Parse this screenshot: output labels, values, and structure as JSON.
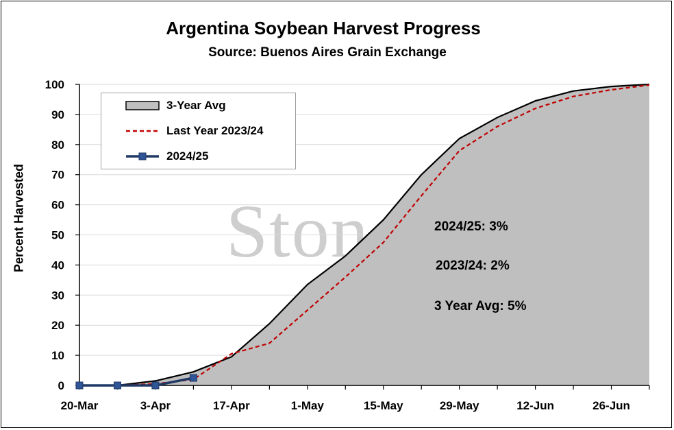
{
  "chart_data": {
    "type": "area",
    "title": "Argentina Soybean Harvest Progress",
    "subtitle": "Source: Buenos Aires Grain Exchange",
    "ylabel": "Percent Harvested",
    "xlabel": "",
    "ylim": [
      0,
      100
    ],
    "yticks": [
      "0",
      "10",
      "20",
      "30",
      "40",
      "50",
      "60",
      "70",
      "80",
      "90",
      "100"
    ],
    "xticks": [
      "20-Mar",
      "3-Apr",
      "17-Apr",
      "1-May",
      "15-May",
      "29-May",
      "12-Jun",
      "26-Jun"
    ],
    "grid": true,
    "legend_position": "top-left",
    "x_dates": [
      "20-Mar",
      "27-Mar",
      "3-Apr",
      "10-Apr",
      "17-Apr",
      "24-Apr",
      "1-May",
      "8-May",
      "15-May",
      "22-May",
      "29-May",
      "5-Jun",
      "12-Jun",
      "19-Jun",
      "26-Jun",
      "3-Jul"
    ],
    "series": [
      {
        "name": "3-Year Avg",
        "style": "area",
        "color": "#bfbfbf",
        "line_color": "#000000",
        "values": [
          0,
          0,
          1.5,
          4.5,
          9.5,
          20.5,
          33.5,
          43,
          55,
          70,
          82,
          89,
          94.5,
          97.8,
          99.3,
          100
        ]
      },
      {
        "name": "Last Year 2023/24",
        "style": "dashed",
        "color": "#c00000",
        "values": [
          0,
          0,
          0.5,
          2,
          10.5,
          14,
          25,
          36,
          47.5,
          63,
          78,
          86,
          92,
          96,
          98.2,
          99.8
        ]
      },
      {
        "name": "2024/25",
        "style": "line-marker",
        "color": "#1f3864",
        "marker_color": "#2f5597",
        "values": [
          0,
          0,
          0,
          2.5
        ]
      }
    ],
    "annotations": [
      {
        "text": "2024/25: 3%"
      },
      {
        "text": "2023/24: 2%"
      },
      {
        "text": "3 Year Avg: 5%"
      }
    ],
    "watermark": "StoneX",
    "watermark_mark": "®"
  }
}
